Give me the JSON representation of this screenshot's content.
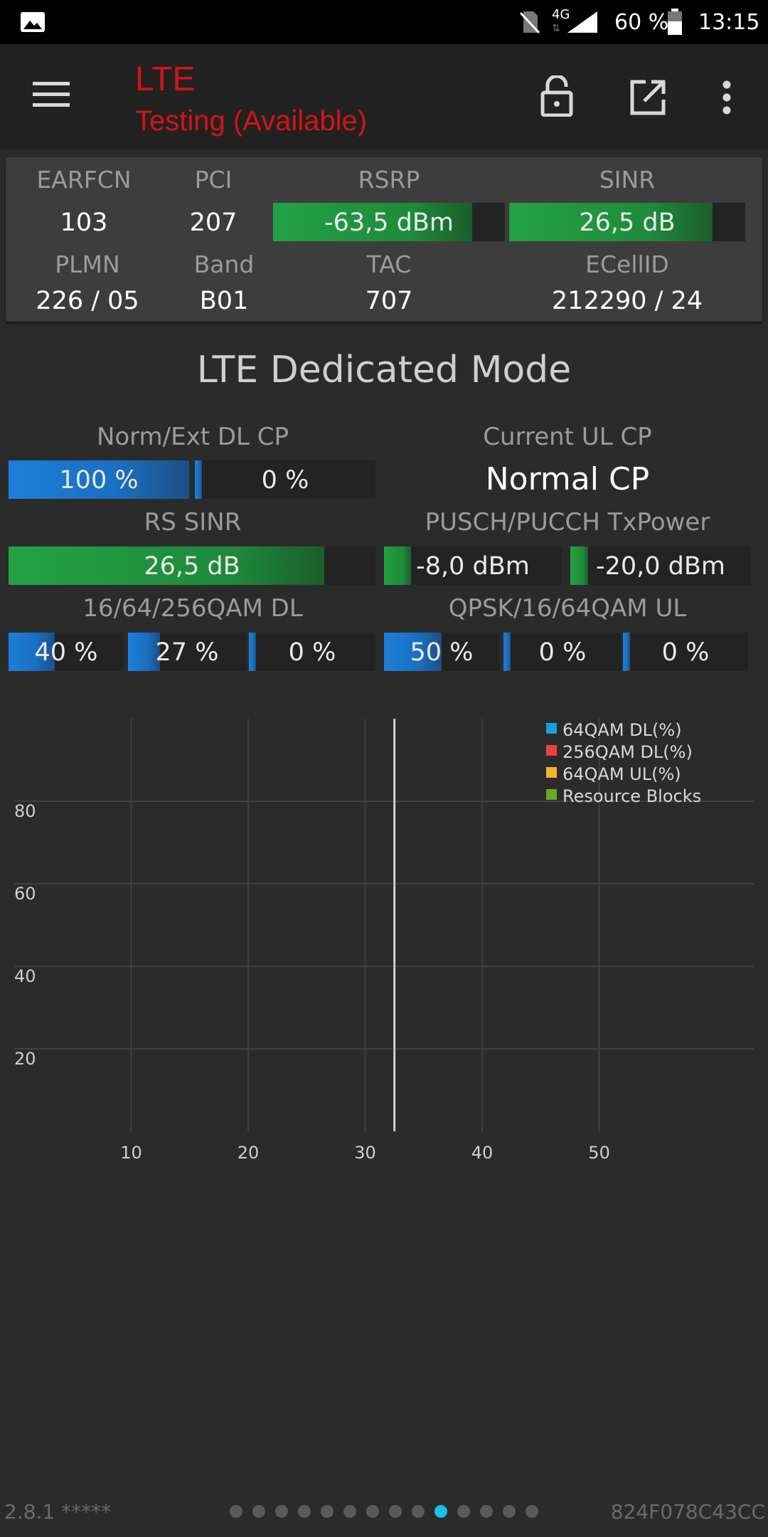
{
  "status_bar": {
    "battery": "60 %",
    "time": "13:15",
    "network": "4G"
  },
  "app_bar": {
    "title": "LTE",
    "subtitle": "Testing (Available)",
    "icons": [
      "menu-icon",
      "lock-icon",
      "open-external-icon",
      "more-vert-icon"
    ]
  },
  "cell_info": {
    "earfcn_label": "EARFCN",
    "earfcn": "103",
    "pci_label": "PCI",
    "pci": "207",
    "rsrp_label": "RSRP",
    "rsrp": "-63,5 dBm",
    "rsrp_level": 0.86,
    "sinr_label": "SINR",
    "sinr": "26,5 dB",
    "sinr_level": 0.86,
    "plmn_label": "PLMN",
    "plmn": "226 / 05",
    "band_label": "Band",
    "band": "B01",
    "tac_label": "TAC",
    "tac": "707",
    "ecellid_label": "ECellID",
    "ecellid": "212290 / 24"
  },
  "dedicated": {
    "title": "LTE Dedicated Mode",
    "cp_label": "Norm/Ext DL CP",
    "cp_norm": "100 %",
    "cp_norm_level": 1.0,
    "cp_ext": "0 %",
    "cp_ext_level": 0.0,
    "ul_cp_label": "Current UL CP",
    "ul_cp_value": "Normal CP",
    "rs_sinr_label": "RS SINR",
    "rs_sinr": "26,5 dB",
    "rs_sinr_level": 0.86,
    "txpower_label": "PUSCH/PUCCH TxPower",
    "pusch": "-8,0 dBm",
    "pusch_level": 0.15,
    "pucch": "-20,0 dBm",
    "pucch_level": 0.1,
    "dl_qam_label": "16/64/256QAM DL",
    "qam16_dl": "40 %",
    "qam16_dl_level": 0.4,
    "qam64_dl": "27 %",
    "qam64_dl_level": 0.27,
    "qam256_dl": "0 %",
    "qam256_dl_level": 0.0,
    "ul_qam_label": "QPSK/16/64QAM UL",
    "qpsk_ul": "50 %",
    "qpsk_ul_level": 0.5,
    "qam16_ul": "0 %",
    "qam16_ul_level": 0.0,
    "qam64_ul": "0 %",
    "qam64_ul_level": 0.0
  },
  "chart_data": {
    "type": "line",
    "x_ticks": [
      "10",
      "20",
      "30",
      "40",
      "50"
    ],
    "y_ticks": [
      "20",
      "40",
      "60",
      "80"
    ],
    "xlim": [
      0,
      62
    ],
    "ylim": [
      0,
      100
    ],
    "cursor_x": 32.5,
    "grid": true,
    "legend_position": "top-right",
    "series": [
      {
        "name": "64QAM DL(%)",
        "color": "#1a9fe0",
        "values": []
      },
      {
        "name": "256QAM DL(%)",
        "color": "#e84343",
        "values": []
      },
      {
        "name": "64QAM UL(%)",
        "color": "#f0b429",
        "values": []
      },
      {
        "name": "Resource Blocks",
        "color": "#6aa91f",
        "values": []
      }
    ]
  },
  "footer": {
    "version": "2.8.1 *****",
    "device_id": "824F078C43CC",
    "page_count": 14,
    "active_page": 10
  }
}
